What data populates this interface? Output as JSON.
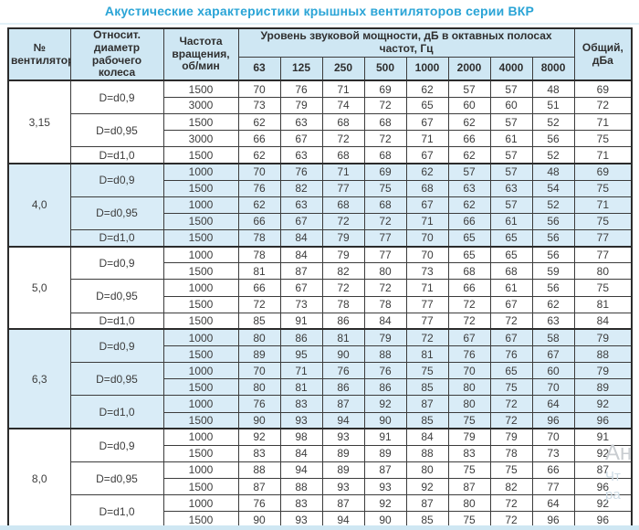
{
  "title": "Акустические характеристики крышных вентиляторов серии ВКР",
  "colors": {
    "title_accent": "#2aa4d6",
    "header_bg": "#cfe7f3",
    "stripe_bg": "#d9ecf7",
    "border": "#2b2b2b",
    "text": "#3d3d3d"
  },
  "table": {
    "headers": {
      "fan_number": "№ вентилятора",
      "rel_diameter": "Относит. диаметр рабочего колеса",
      "rotation": "Частота вращения, об/мин",
      "sound_power": "Уровень звуковой мощности, дБ в октавных полосах частот, Гц",
      "frequencies": [
        "63",
        "125",
        "250",
        "500",
        "1000",
        "2000",
        "4000",
        "8000"
      ],
      "total": "Общий, дБа"
    },
    "groups": [
      {
        "fan": "3,15",
        "shaded": false,
        "diameters": [
          {
            "label": "D=d0,9",
            "rows": [
              {
                "rpm": "1500",
                "values": [
                  70,
                  76,
                  71,
                  69,
                  62,
                  57,
                  57,
                  48
                ],
                "total": 69
              },
              {
                "rpm": "3000",
                "values": [
                  73,
                  79,
                  74,
                  72,
                  65,
                  60,
                  60,
                  51
                ],
                "total": 72
              }
            ]
          },
          {
            "label": "D=d0,95",
            "rows": [
              {
                "rpm": "1500",
                "values": [
                  62,
                  63,
                  68,
                  68,
                  67,
                  62,
                  57,
                  52
                ],
                "total": 71
              },
              {
                "rpm": "3000",
                "values": [
                  66,
                  67,
                  72,
                  72,
                  71,
                  66,
                  61,
                  56
                ],
                "total": 75
              }
            ]
          },
          {
            "label": "D=d1,0",
            "rows": [
              {
                "rpm": "1500",
                "values": [
                  62,
                  63,
                  68,
                  68,
                  67,
                  62,
                  57,
                  52
                ],
                "total": 71
              }
            ]
          }
        ]
      },
      {
        "fan": "4,0",
        "shaded": true,
        "diameters": [
          {
            "label": "D=d0,9",
            "rows": [
              {
                "rpm": "1000",
                "values": [
                  70,
                  76,
                  71,
                  69,
                  62,
                  57,
                  57,
                  48
                ],
                "total": 69
              },
              {
                "rpm": "1500",
                "values": [
                  76,
                  82,
                  77,
                  75,
                  68,
                  63,
                  63,
                  54
                ],
                "total": 75
              }
            ]
          },
          {
            "label": "D=d0,95",
            "rows": [
              {
                "rpm": "1000",
                "values": [
                  62,
                  63,
                  68,
                  68,
                  67,
                  62,
                  57,
                  52
                ],
                "total": 71
              },
              {
                "rpm": "1500",
                "values": [
                  66,
                  67,
                  72,
                  72,
                  71,
                  66,
                  61,
                  56
                ],
                "total": 75
              }
            ]
          },
          {
            "label": "D=d1,0",
            "rows": [
              {
                "rpm": "1500",
                "values": [
                  78,
                  84,
                  79,
                  77,
                  70,
                  65,
                  65,
                  56
                ],
                "total": 77
              }
            ]
          }
        ]
      },
      {
        "fan": "5,0",
        "shaded": false,
        "diameters": [
          {
            "label": "D=d0,9",
            "rows": [
              {
                "rpm": "1000",
                "values": [
                  78,
                  84,
                  79,
                  77,
                  70,
                  65,
                  65,
                  56
                ],
                "total": 77
              },
              {
                "rpm": "1500",
                "values": [
                  81,
                  87,
                  82,
                  80,
                  73,
                  68,
                  68,
                  59
                ],
                "total": 80
              }
            ]
          },
          {
            "label": "D=d0,95",
            "rows": [
              {
                "rpm": "1000",
                "values": [
                  66,
                  67,
                  72,
                  72,
                  71,
                  66,
                  61,
                  56
                ],
                "total": 75
              },
              {
                "rpm": "1500",
                "values": [
                  72,
                  73,
                  78,
                  78,
                  77,
                  72,
                  67,
                  62
                ],
                "total": 81
              }
            ]
          },
          {
            "label": "D=d1,0",
            "rows": [
              {
                "rpm": "1500",
                "values": [
                  85,
                  91,
                  86,
                  84,
                  77,
                  72,
                  72,
                  63
                ],
                "total": 84
              }
            ]
          }
        ]
      },
      {
        "fan": "6,3",
        "shaded": true,
        "diameters": [
          {
            "label": "D=d0,9",
            "rows": [
              {
                "rpm": "1000",
                "values": [
                  80,
                  86,
                  81,
                  79,
                  72,
                  67,
                  67,
                  58
                ],
                "total": 79
              },
              {
                "rpm": "1500",
                "values": [
                  89,
                  95,
                  90,
                  88,
                  81,
                  76,
                  76,
                  67
                ],
                "total": 88
              }
            ]
          },
          {
            "label": "D=d0,95",
            "rows": [
              {
                "rpm": "1000",
                "values": [
                  70,
                  71,
                  76,
                  76,
                  75,
                  70,
                  65,
                  60
                ],
                "total": 79
              },
              {
                "rpm": "1500",
                "values": [
                  80,
                  81,
                  86,
                  86,
                  85,
                  80,
                  75,
                  70
                ],
                "total": 89
              }
            ]
          },
          {
            "label": "D=d1,0",
            "rows": [
              {
                "rpm": "1000",
                "values": [
                  76,
                  83,
                  87,
                  92,
                  87,
                  80,
                  72,
                  64
                ],
                "total": 92
              },
              {
                "rpm": "1500",
                "values": [
                  90,
                  93,
                  94,
                  90,
                  85,
                  75,
                  72,
                  96
                ],
                "total": 96
              }
            ]
          }
        ]
      },
      {
        "fan": "8,0",
        "shaded": false,
        "diameters": [
          {
            "label": "D=d0,9",
            "rows": [
              {
                "rpm": "1000",
                "values": [
                  92,
                  98,
                  93,
                  91,
                  84,
                  79,
                  79,
                  70
                ],
                "total": 91
              },
              {
                "rpm": "1500",
                "values": [
                  83,
                  84,
                  89,
                  89,
                  88,
                  83,
                  78,
                  73
                ],
                "total": 92
              }
            ]
          },
          {
            "label": "D=d0,95",
            "rows": [
              {
                "rpm": "1000",
                "values": [
                  88,
                  94,
                  89,
                  87,
                  80,
                  75,
                  75,
                  66
                ],
                "total": 87
              },
              {
                "rpm": "1500",
                "values": [
                  87,
                  88,
                  93,
                  93,
                  92,
                  87,
                  82,
                  77
                ],
                "total": 96
              }
            ]
          },
          {
            "label": "D=d1,0",
            "rows": [
              {
                "rpm": "1000",
                "values": [
                  76,
                  83,
                  87,
                  92,
                  87,
                  80,
                  72,
                  64
                ],
                "total": 92
              },
              {
                "rpm": "1500",
                "values": [
                  90,
                  93,
                  94,
                  90,
                  85,
                  75,
                  72,
                  96
                ],
                "total": 96
              }
            ]
          }
        ]
      }
    ]
  },
  "watermark": {
    "lines": [
      "Ан",
      "Чт",
      "ра"
    ]
  }
}
